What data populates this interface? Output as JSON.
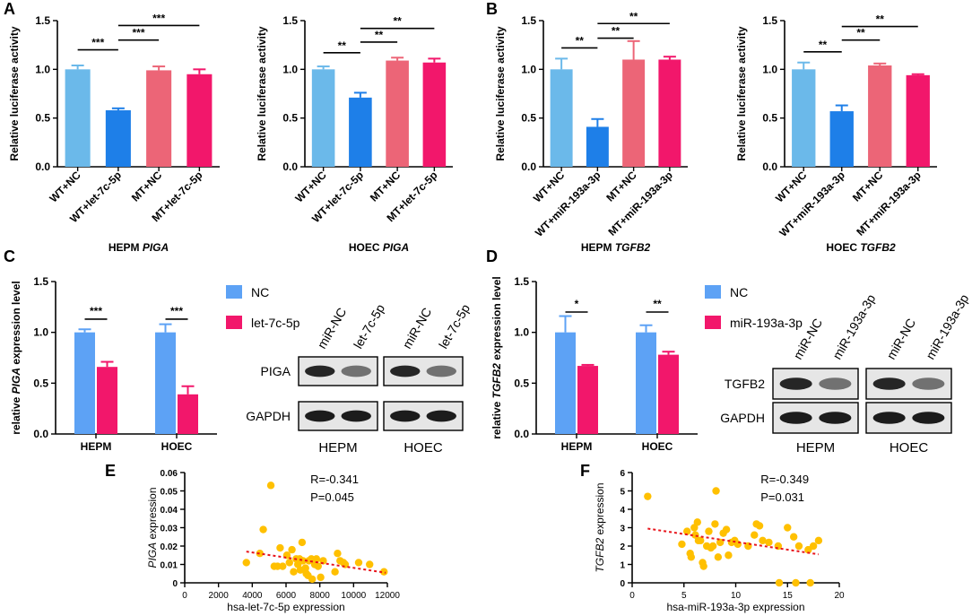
{
  "panel_labels": {
    "A": "A",
    "B": "B",
    "C": "C",
    "D": "D",
    "E": "E",
    "F": "F"
  },
  "colors": {
    "nc": "#6BB9EA",
    "mimic": "#1E7FE8",
    "mt_nc": "#EC6577",
    "mt_mimic": "#F2176B",
    "blot_nc": "#5DA2F5",
    "blot_mimic": "#F2176B",
    "scatter": "#FFC000",
    "trend": "#E8141B"
  },
  "chart_data": [
    {
      "id": "A1",
      "type": "bar",
      "panel": "A",
      "ylabel": "Relative luciferase activity",
      "xlabel_pre": "HEPM",
      "xlabel_gene": "PIGA",
      "ylim": [
        0,
        1.5
      ],
      "yticks": [
        "0.0",
        "0.5",
        "1.0",
        "1.5"
      ],
      "categories": [
        "WT+NC",
        "WT+let-7c-5p",
        "MT+NC",
        "MT+let-7c-5p"
      ],
      "values": [
        1.0,
        0.58,
        0.99,
        0.95
      ],
      "errors": [
        0.04,
        0.02,
        0.04,
        0.05
      ],
      "sig": [
        {
          "a": 0,
          "b": 1,
          "label": "***",
          "y": 1.2
        },
        {
          "a": 1,
          "b": 2,
          "label": "***",
          "y": 1.3
        },
        {
          "a": 1,
          "b": 3,
          "label": "***",
          "y": 1.45
        }
      ]
    },
    {
      "id": "A2",
      "type": "bar",
      "panel": "A",
      "ylabel": "Relative luciferase activity",
      "xlabel_pre": "HOEC",
      "xlabel_gene": "PIGA",
      "ylim": [
        0,
        1.5
      ],
      "yticks": [
        "0.0",
        "0.5",
        "1.0",
        "1.5"
      ],
      "categories": [
        "WT+NC",
        "WT+let-7c-5p",
        "MT+NC",
        "MT+let-7c-5p"
      ],
      "values": [
        1.0,
        0.71,
        1.09,
        1.07
      ],
      "errors": [
        0.03,
        0.05,
        0.03,
        0.04
      ],
      "sig": [
        {
          "a": 0,
          "b": 1,
          "label": "**",
          "y": 1.17
        },
        {
          "a": 1,
          "b": 2,
          "label": "**",
          "y": 1.28
        },
        {
          "a": 1,
          "b": 3,
          "label": "**",
          "y": 1.42
        }
      ]
    },
    {
      "id": "B1",
      "type": "bar",
      "panel": "B",
      "ylabel": "Relative luciferase activity",
      "xlabel_pre": "HEPM",
      "xlabel_gene": "TGFB2",
      "ylim": [
        0,
        1.5
      ],
      "yticks": [
        "0.0",
        "0.5",
        "1.0",
        "1.5"
      ],
      "categories": [
        "WT+NC",
        "WT+miR-193a-3p",
        "MT+NC",
        "MT+miR-193a-3p"
      ],
      "values": [
        1.0,
        0.41,
        1.1,
        1.1
      ],
      "errors": [
        0.11,
        0.08,
        0.19,
        0.03
      ],
      "sig": [
        {
          "a": 0,
          "b": 1,
          "label": "**",
          "y": 1.22
        },
        {
          "a": 1,
          "b": 2,
          "label": "**",
          "y": 1.32
        },
        {
          "a": 1,
          "b": 3,
          "label": "**",
          "y": 1.47
        }
      ]
    },
    {
      "id": "B2",
      "type": "bar",
      "panel": "B",
      "ylabel": "Relative luciferase activity",
      "xlabel_pre": "HOEC",
      "xlabel_gene": "TGFB2",
      "ylim": [
        0,
        1.5
      ],
      "yticks": [
        "0.0",
        "0.5",
        "1.0",
        "1.5"
      ],
      "categories": [
        "WT+NC",
        "WT+miR-193a-3p",
        "MT+NC",
        "MT+miR-193a-3p"
      ],
      "values": [
        1.0,
        0.57,
        1.04,
        0.94
      ],
      "errors": [
        0.07,
        0.06,
        0.02,
        0.01
      ],
      "sig": [
        {
          "a": 0,
          "b": 1,
          "label": "**",
          "y": 1.18
        },
        {
          "a": 1,
          "b": 2,
          "label": "**",
          "y": 1.3
        },
        {
          "a": 1,
          "b": 3,
          "label": "**",
          "y": 1.44
        }
      ]
    },
    {
      "id": "C",
      "type": "bar",
      "panel": "C",
      "ylabel_pre": "relative ",
      "ylabel_gene": "PIGA",
      "ylabel_post": " expression level",
      "ylim": [
        0,
        1.5
      ],
      "yticks": [
        "0.0",
        "0.5",
        "1.0",
        "1.5"
      ],
      "categories": [
        "HEPM",
        "HOEC"
      ],
      "series": [
        {
          "name": "NC",
          "values": [
            1.0,
            1.0
          ],
          "errors": [
            0.03,
            0.08
          ]
        },
        {
          "name": "let-7c-5p",
          "values": [
            0.66,
            0.39
          ],
          "errors": [
            0.05,
            0.08
          ]
        }
      ],
      "sig": [
        {
          "group": 0,
          "label": "***",
          "y": 1.13
        },
        {
          "group": 1,
          "label": "***",
          "y": 1.13
        }
      ],
      "legend": [
        "NC",
        "let-7c-5p"
      ]
    },
    {
      "id": "D",
      "type": "bar",
      "panel": "D",
      "ylabel_pre": "relative ",
      "ylabel_gene": "TGFB2",
      "ylabel_post": " expression level",
      "ylim": [
        0,
        1.5
      ],
      "yticks": [
        "0.0",
        "0.5",
        "1.0",
        "1.5"
      ],
      "categories": [
        "HEPM",
        "HOEC"
      ],
      "series": [
        {
          "name": "NC",
          "values": [
            1.0,
            1.0
          ],
          "errors": [
            0.16,
            0.07
          ]
        },
        {
          "name": "miR-193a-3p",
          "values": [
            0.67,
            0.78
          ],
          "errors": [
            0.01,
            0.03
          ]
        }
      ],
      "sig": [
        {
          "group": 0,
          "label": "*",
          "y": 1.2
        },
        {
          "group": 1,
          "label": "**",
          "y": 1.2
        }
      ],
      "legend": [
        "NC",
        "miR-193a-3p"
      ]
    },
    {
      "id": "E",
      "type": "scatter",
      "panel": "E",
      "ylabel_gene": "PIGA",
      "ylabel_post": " expression",
      "xlabel": "hsa-let-7c-5p expression",
      "xlim": [
        0,
        12000
      ],
      "ylim": [
        0,
        0.06
      ],
      "xticks": [
        "0",
        "2000",
        "4000",
        "6000",
        "8000",
        "10000",
        "12000"
      ],
      "yticks": [
        "0",
        "0.01",
        "0.02",
        "0.03",
        "0.04",
        "0.05",
        "0.06"
      ],
      "stat_r": "R=-0.341",
      "stat_p": "P=0.045",
      "points": [
        [
          3650,
          0.011
        ],
        [
          4450,
          0.016
        ],
        [
          4650,
          0.029
        ],
        [
          5100,
          0.053
        ],
        [
          5300,
          0.009
        ],
        [
          5500,
          0.009
        ],
        [
          5650,
          0.019
        ],
        [
          5800,
          0.009
        ],
        [
          6050,
          0.015
        ],
        [
          6200,
          0.011
        ],
        [
          6350,
          0.018
        ],
        [
          6450,
          0.006
        ],
        [
          6600,
          0.013
        ],
        [
          6700,
          0.01
        ],
        [
          6800,
          0.013
        ],
        [
          6850,
          0.007
        ],
        [
          6950,
          0.022
        ],
        [
          7000,
          0.012
        ],
        [
          7150,
          0.008
        ],
        [
          7200,
          0.005
        ],
        [
          7300,
          0.004
        ],
        [
          7350,
          0.012
        ],
        [
          7500,
          0.013
        ],
        [
          7550,
          0.002
        ],
        [
          7700,
          0.01
        ],
        [
          7800,
          0.013
        ],
        [
          7900,
          0.009
        ],
        [
          8050,
          0.003
        ],
        [
          8200,
          0.012
        ],
        [
          8900,
          0.006
        ],
        [
          9050,
          0.016
        ],
        [
          9200,
          0.012
        ],
        [
          9400,
          0.011
        ],
        [
          9500,
          0.01
        ],
        [
          10300,
          0.011
        ],
        [
          10950,
          0.01
        ],
        [
          11800,
          0.006
        ]
      ],
      "trend": [
        [
          3650,
          0.017
        ],
        [
          11900,
          0.0055
        ]
      ]
    },
    {
      "id": "F",
      "type": "scatter",
      "panel": "F",
      "ylabel_gene": "TGFB2",
      "ylabel_post": " expression",
      "xlabel": "hsa-miR-193a-3p expression",
      "xlim": [
        0,
        20
      ],
      "ylim": [
        0,
        6
      ],
      "xticks": [
        "0",
        "5",
        "10",
        "15",
        "20"
      ],
      "yticks": [
        "0",
        "1",
        "2",
        "3",
        "4",
        "5",
        "6"
      ],
      "stat_r": "R=-0.349",
      "stat_p": "P=0.031",
      "points": [
        [
          1.5,
          4.7
        ],
        [
          4.8,
          2.1
        ],
        [
          5.3,
          2.8
        ],
        [
          5.6,
          1.6
        ],
        [
          5.7,
          1.4
        ],
        [
          6.0,
          3.0
        ],
        [
          6.1,
          2.6
        ],
        [
          6.3,
          3.3
        ],
        [
          6.4,
          2.3
        ],
        [
          6.6,
          2.3
        ],
        [
          6.8,
          1.1
        ],
        [
          6.9,
          0.9
        ],
        [
          7.2,
          2.0
        ],
        [
          7.4,
          2.8
        ],
        [
          7.6,
          1.9
        ],
        [
          7.8,
          2.0
        ],
        [
          8.0,
          3.2
        ],
        [
          8.1,
          5.0
        ],
        [
          8.3,
          1.4
        ],
        [
          8.5,
          2.2
        ],
        [
          8.8,
          2.7
        ],
        [
          9.1,
          2.9
        ],
        [
          9.3,
          1.5
        ],
        [
          9.6,
          2.2
        ],
        [
          9.9,
          2.3
        ],
        [
          10.2,
          2.1
        ],
        [
          11.2,
          2.0
        ],
        [
          11.8,
          2.6
        ],
        [
          12.0,
          3.2
        ],
        [
          12.3,
          3.1
        ],
        [
          12.6,
          2.3
        ],
        [
          13.2,
          2.2
        ],
        [
          14.1,
          2.0
        ],
        [
          14.2,
          0.0
        ],
        [
          15.0,
          3.0
        ],
        [
          15.6,
          2.5
        ],
        [
          15.8,
          0.0
        ],
        [
          16.1,
          2.0
        ],
        [
          17.0,
          1.8
        ],
        [
          17.2,
          0.0
        ],
        [
          17.5,
          2.0
        ],
        [
          18.0,
          2.3
        ]
      ],
      "trend": [
        [
          1.5,
          2.95
        ],
        [
          18.0,
          1.55
        ]
      ]
    }
  ],
  "blots": {
    "C": {
      "lanes": [
        "miR-NC",
        "let-7c-5p",
        "miR-NC",
        "let-7c-5p"
      ],
      "rows": [
        "PIGA",
        "GAPDH"
      ],
      "groups": [
        "HEPM",
        "HOEC"
      ]
    },
    "D": {
      "lanes": [
        "miR-NC",
        "miR-193a-3p",
        "miR-NC",
        "miR-193a-3p"
      ],
      "rows": [
        "TGFB2",
        "GAPDH"
      ],
      "groups": [
        "HEPM",
        "HOEC"
      ]
    }
  }
}
